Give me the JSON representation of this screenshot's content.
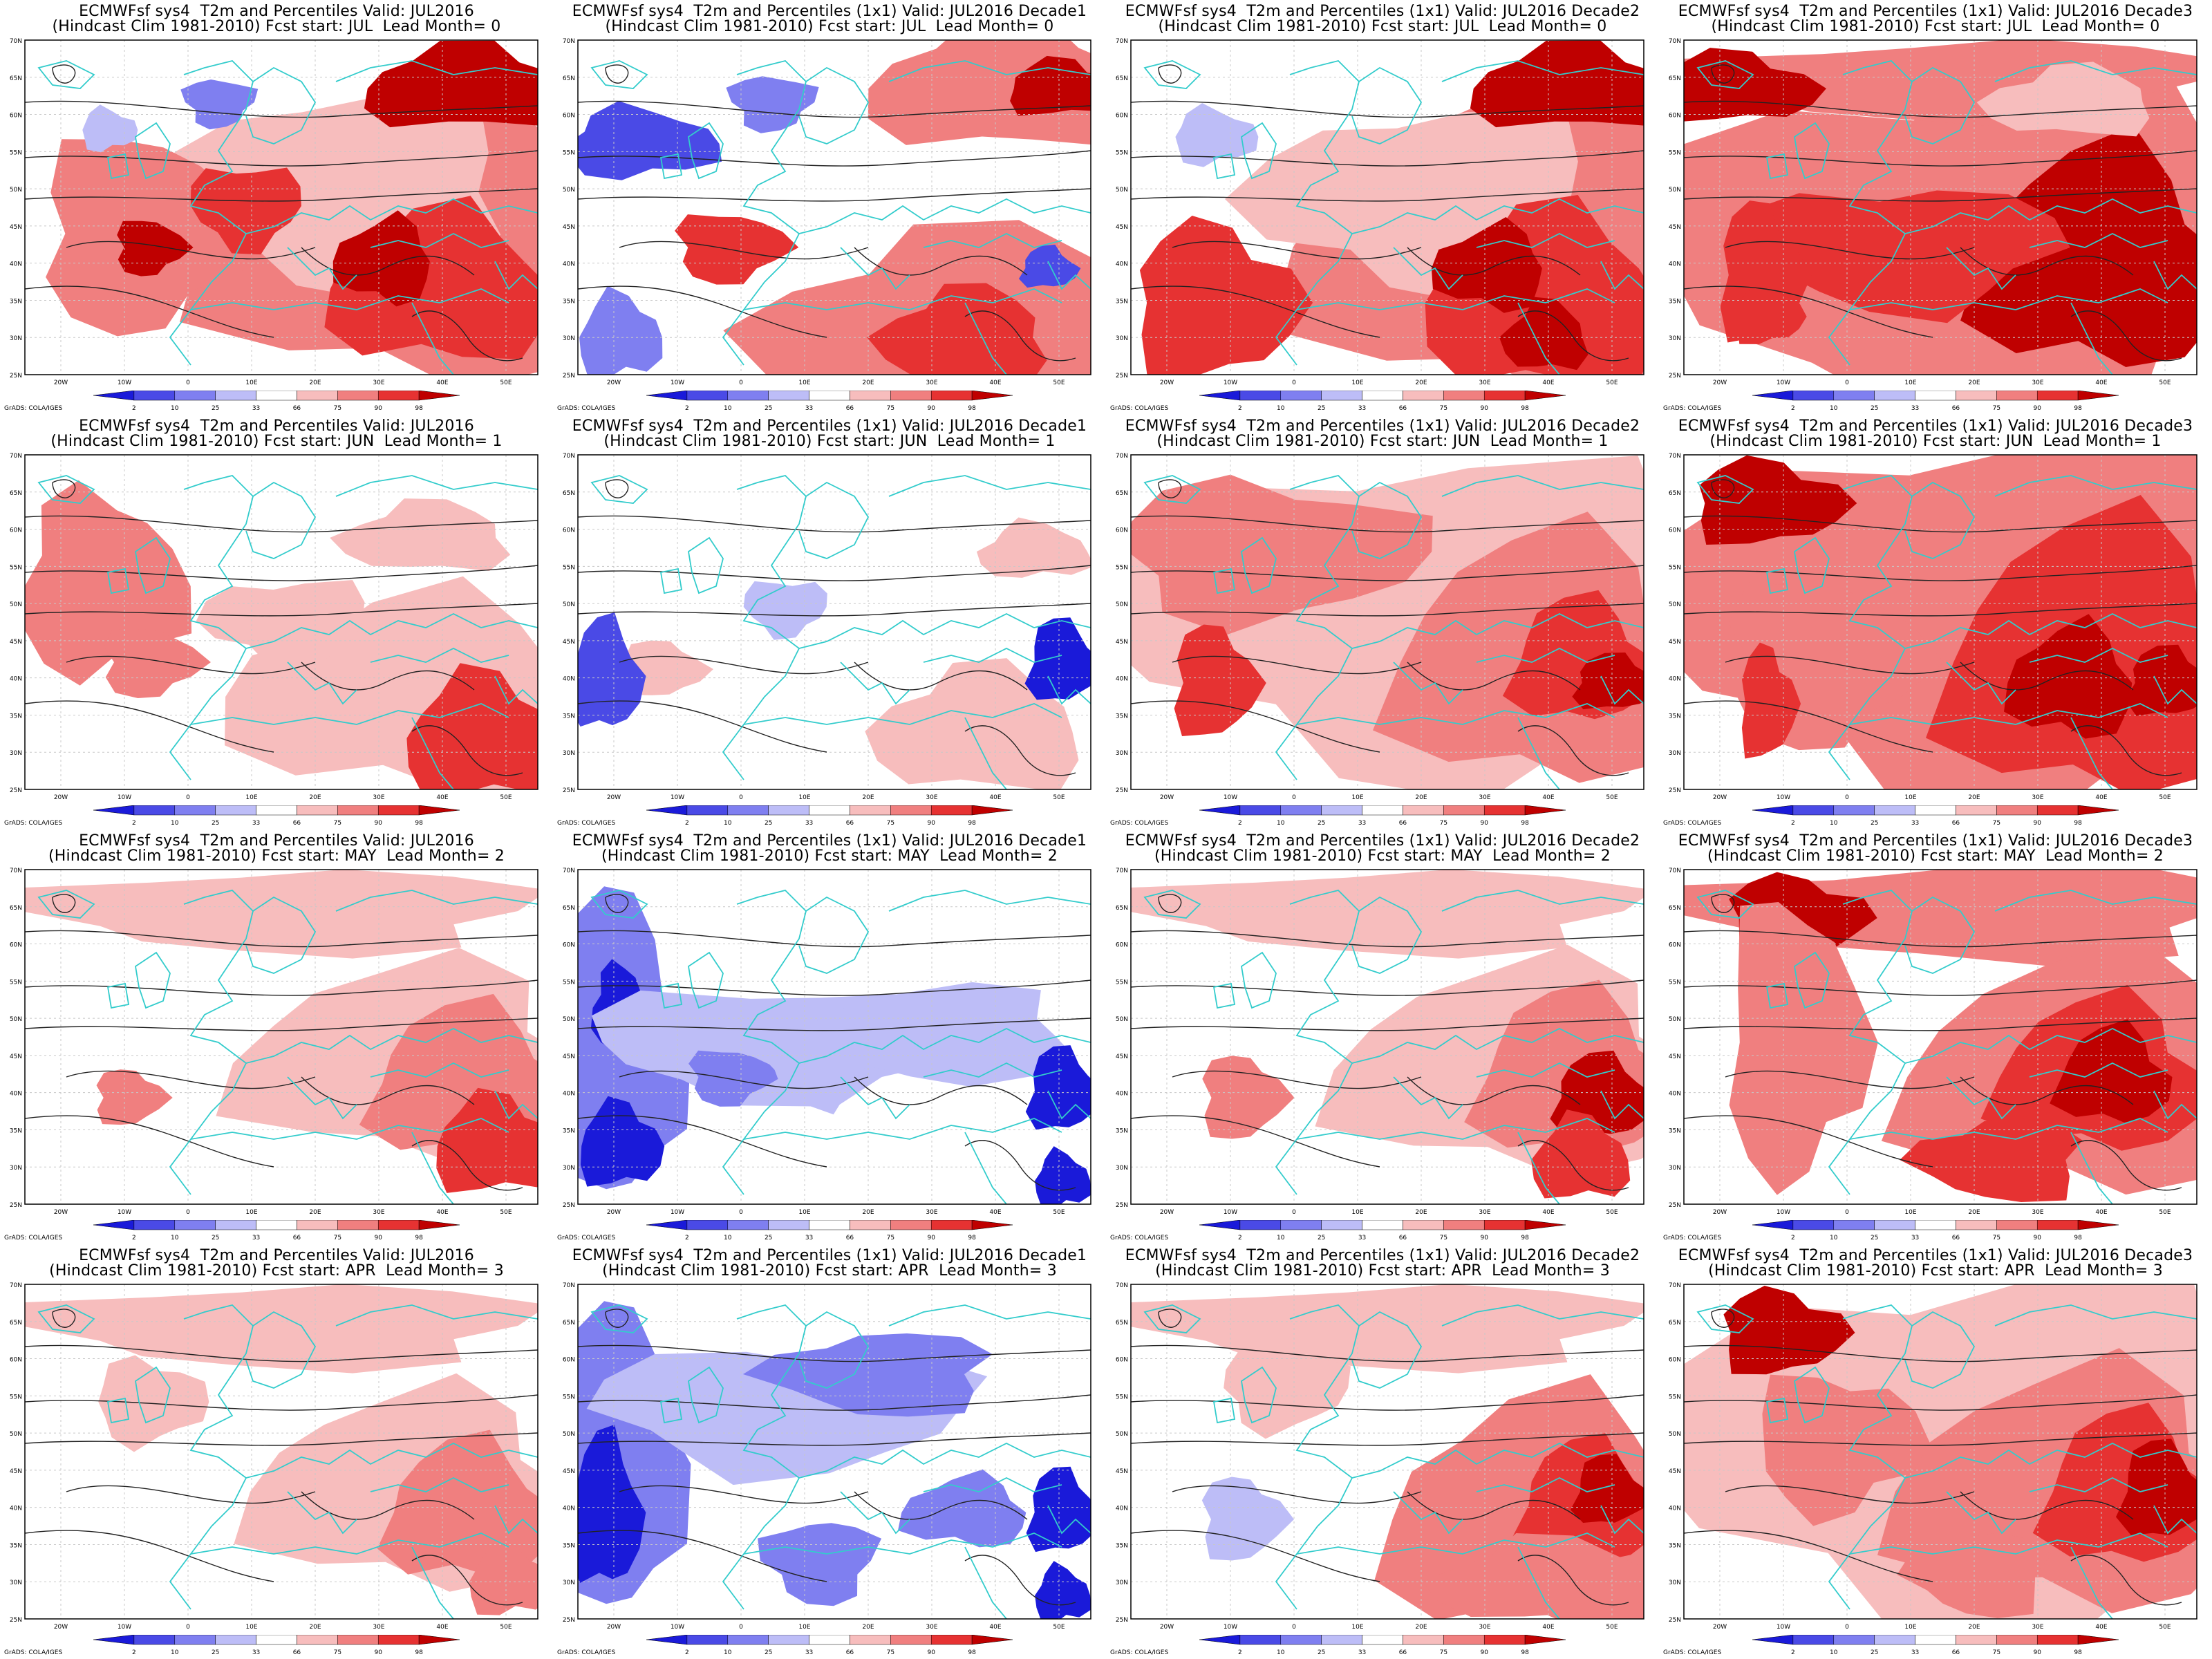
{
  "panels": [
    {
      "title1": "ECMWFsf sys4  T2m and Percentiles Valid: JUL2016",
      "title2": "(Hindcast Clim 1981-2010) Fcst start: JUL  Lead Month= 0"
    },
    {
      "title1": "ECMWFsf sys4  T2m and Percentiles (1x1) Valid: JUL2016 Decade1",
      "title2": "(Hindcast Clim 1981-2010) Fcst start: JUL  Lead Month= 0"
    },
    {
      "title1": "ECMWFsf sys4  T2m and Percentiles (1x1) Valid: JUL2016 Decade2",
      "title2": "(Hindcast Clim 1981-2010) Fcst start: JUL  Lead Month= 0"
    },
    {
      "title1": "ECMWFsf sys4  T2m and Percentiles (1x1) Valid: JUL2016 Decade3",
      "title2": "(Hindcast Clim 1981-2010) Fcst start: JUL  Lead Month= 0"
    },
    {
      "title1": "ECMWFsf sys4  T2m and Percentiles Valid: JUL2016",
      "title2": "(Hindcast Clim 1981-2010) Fcst start: JUN  Lead Month= 1"
    },
    {
      "title1": "ECMWFsf sys4  T2m and Percentiles (1x1) Valid: JUL2016 Decade1",
      "title2": "(Hindcast Clim 1981-2010) Fcst start: JUN  Lead Month= 1"
    },
    {
      "title1": "ECMWFsf sys4  T2m and Percentiles (1x1) Valid: JUL2016 Decade2",
      "title2": "(Hindcast Clim 1981-2010) Fcst start: JUN  Lead Month= 1"
    },
    {
      "title1": "ECMWFsf sys4  T2m and Percentiles (1x1) Valid: JUL2016 Decade3",
      "title2": "(Hindcast Clim 1981-2010) Fcst start: JUN  Lead Month= 1"
    },
    {
      "title1": "ECMWFsf sys4  T2m and Percentiles Valid: JUL2016",
      "title2": "(Hindcast Clim 1981-2010) Fcst start: MAY  Lead Month= 2"
    },
    {
      "title1": "ECMWFsf sys4  T2m and Percentiles (1x1) Valid: JUL2016 Decade1",
      "title2": "(Hindcast Clim 1981-2010) Fcst start: MAY  Lead Month= 2"
    },
    {
      "title1": "ECMWFsf sys4  T2m and Percentiles (1x1) Valid: JUL2016 Decade2",
      "title2": "(Hindcast Clim 1981-2010) Fcst start: MAY  Lead Month= 2"
    },
    {
      "title1": "ECMWFsf sys4  T2m and Percentiles (1x1) Valid: JUL2016 Decade3",
      "title2": "(Hindcast Clim 1981-2010) Fcst start: MAY  Lead Month= 2"
    },
    {
      "title1": "ECMWFsf sys4  T2m and Percentiles Valid: JUL2016",
      "title2": "(Hindcast Clim 1981-2010) Fcst start: APR  Lead Month= 3"
    },
    {
      "title1": "ECMWFsf sys4  T2m and Percentiles (1x1) Valid: JUL2016 Decade1",
      "title2": "(Hindcast Clim 1981-2010) Fcst start: APR  Lead Month= 3"
    },
    {
      "title1": "ECMWFsf sys4  T2m and Percentiles (1x1) Valid: JUL2016 Decade2",
      "title2": "(Hindcast Clim 1981-2010) Fcst start: APR  Lead Month= 3"
    },
    {
      "title1": "ECMWFsf sys4  T2m and Percentiles (1x1) Valid: JUL2016 Decade3",
      "title2": "(Hindcast Clim 1981-2010) Fcst start: APR  Lead Month= 3"
    }
  ],
  "lat_labels": [
    "70N",
    "65N",
    "60N",
    "55N",
    "50N",
    "45N",
    "40N",
    "35N",
    "30N",
    "25N"
  ],
  "lon_labels": [
    "20W",
    "10W",
    "0",
    "10E",
    "20E",
    "30E",
    "40E",
    "50E"
  ],
  "colorbar": {
    "labels": [
      "2",
      "10",
      "25",
      "33",
      "66",
      "75",
      "90",
      "98"
    ],
    "colors": [
      "#1a1ad9",
      "#4a4ae6",
      "#7f7ff0",
      "#bdbdf7",
      "#ffffff",
      "#f7bdbd",
      "#f07f7f",
      "#e63232",
      "#bf0000"
    ]
  },
  "credit": "GrADS: COLA/IGES",
  "colors": {
    "coast": "#33cccc",
    "contour": "#222222",
    "gridline": "#c8c8c8"
  }
}
